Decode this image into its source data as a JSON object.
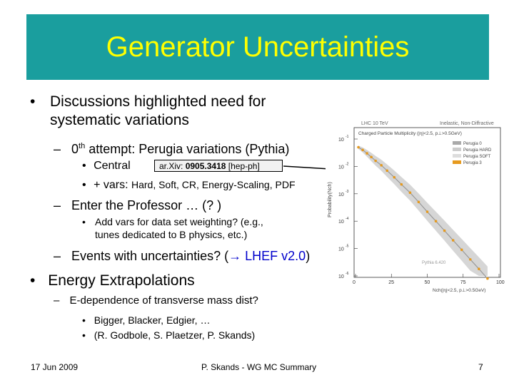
{
  "header": {
    "title": "Generator Uncertainties"
  },
  "bullets": {
    "b1": "Discussions highlighted need for systematic variations",
    "b1_line1": "Discussions highlighted need for",
    "b1_line2": "systematic variations",
    "s1": "0th attempt: Perugia variations (Pythia)",
    "s1_pre": "0",
    "s1_sup": "th",
    "s1_post": " attempt: Perugia variations (Pythia)",
    "t1": "Central",
    "arxiv_pre": "ar.Xiv: ",
    "arxiv_num": "0905.3418",
    "arxiv_post": " [hep-ph]",
    "t2_pre": "+ vars: ",
    "t2_rest": "Hard, Soft, CR, Energy-Scaling, PDF",
    "s2": "Enter the Professor … (? )",
    "t3_line1": "Add vars for data set weighting? (e.g.,",
    "t3_line2": "tunes dedicated to B physics, etc.)",
    "s3_pre": "Events with uncertainties? (",
    "s3_arrow": "→",
    "s3_lhef": " LHEF v2.0",
    "s3_post": ")",
    "b2": "Energy Extrapolations",
    "s4": "E-dependence of transverse mass dist?",
    "t4": "Bigger, Blacker, Edgier, …",
    "t5": "(R. Godbole, S. Plaetzer, P. Skands)"
  },
  "footer": {
    "date": "17 Jun 2009",
    "center": "P. Skands - WG MC Summary",
    "page": "7"
  },
  "plot": {
    "header_left": "LHC 10 TeV",
    "header_right": "Inelastic, Non-Diffractive",
    "subtitle": "Charged Particle Multiplicity (|η|<2.5, p⊥>0.5GeV)",
    "ylabel": "Probability(Nch)",
    "xlabel": "Nch(|η|<2.5, p⊥>0.5GeV)",
    "legend": [
      "Perugia 0",
      "Perugia HARD",
      "Perugia SOFT",
      "Perugia 3"
    ],
    "watermark": "Pythia 6.420",
    "xticks": [
      "0",
      "25",
      "50",
      "75",
      "100"
    ],
    "yticks": [
      "10",
      "10",
      "10",
      "10",
      "10",
      "10"
    ],
    "yexp": [
      "-1",
      "-2",
      "-3",
      "-4",
      "-5",
      "-6"
    ],
    "colors": {
      "central": "#999999",
      "band": "#cccccc",
      "markers": "#e69a1e"
    }
  },
  "chart_data": {
    "type": "scatter",
    "x": [
      2,
      5,
      8,
      11,
      14,
      18,
      22,
      27,
      32,
      38,
      44,
      50,
      56,
      62,
      68,
      74,
      80,
      86,
      92
    ],
    "series": [
      {
        "name": "Perugia 3",
        "values": [
          0.05,
          0.04,
          0.03,
          0.022,
          0.016,
          0.011,
          0.007,
          0.004,
          0.0022,
          0.0011,
          0.0005,
          0.00022,
          0.0001,
          4.5e-05,
          2e-05,
          9e-06,
          4e-06,
          1.8e-06,
          8e-07
        ]
      }
    ],
    "xlim": [
      0,
      100
    ],
    "ylim": [
      1e-06,
      0.1
    ],
    "yscale": "log"
  }
}
